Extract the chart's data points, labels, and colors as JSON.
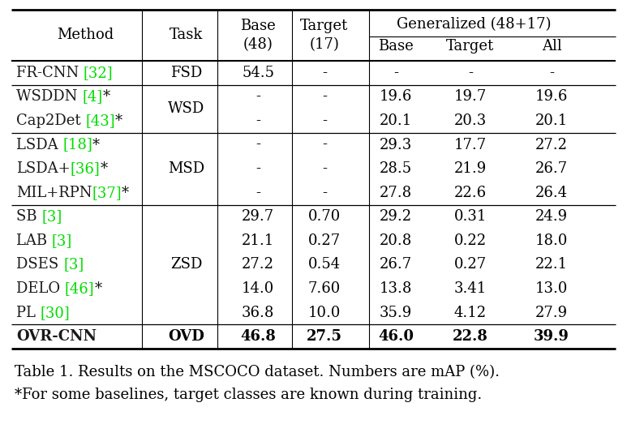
{
  "title_caption": "Table 1. Results on the MSCOCO dataset. Numbers are mAP (%).",
  "subtitle_caption": "*For some baselines, target classes are known during training.",
  "bg_color": "#ffffff",
  "rows": [
    {
      "method_parts": [
        [
          "FR-CNN ",
          "#1a1a1a"
        ],
        [
          "[32]",
          "#00dd00"
        ]
      ],
      "task": "FSD",
      "task_rows": 1,
      "base48": "54.5",
      "target17": "-",
      "gen_base": "-",
      "gen_target": "-",
      "gen_all": "-",
      "bold": false,
      "group_sep_before": true
    },
    {
      "method_parts": [
        [
          "WSDDN ",
          "#1a1a1a"
        ],
        [
          "[4]",
          "#00dd00"
        ],
        [
          "*",
          "#1a1a1a"
        ]
      ],
      "task": "WSD",
      "task_rows": 2,
      "base48": "-",
      "target17": "-",
      "gen_base": "19.6",
      "gen_target": "19.7",
      "gen_all": "19.6",
      "bold": false,
      "group_sep_before": true
    },
    {
      "method_parts": [
        [
          "Cap2Det ",
          "#1a1a1a"
        ],
        [
          "[43]",
          "#00dd00"
        ],
        [
          "*",
          "#1a1a1a"
        ]
      ],
      "task": "",
      "task_rows": 0,
      "base48": "-",
      "target17": "-",
      "gen_base": "20.1",
      "gen_target": "20.3",
      "gen_all": "20.1",
      "bold": false,
      "group_sep_before": false
    },
    {
      "method_parts": [
        [
          "LSDA ",
          "#1a1a1a"
        ],
        [
          "[18]",
          "#00dd00"
        ],
        [
          "*",
          "#1a1a1a"
        ]
      ],
      "task": "MSD",
      "task_rows": 3,
      "base48": "-",
      "target17": "-",
      "gen_base": "29.3",
      "gen_target": "17.7",
      "gen_all": "27.2",
      "bold": false,
      "group_sep_before": true
    },
    {
      "method_parts": [
        [
          "LSDA+",
          "#1a1a1a"
        ],
        [
          "[36]",
          "#00dd00"
        ],
        [
          "*",
          "#1a1a1a"
        ]
      ],
      "task": "",
      "task_rows": 0,
      "base48": "-",
      "target17": "-",
      "gen_base": "28.5",
      "gen_target": "21.9",
      "gen_all": "26.7",
      "bold": false,
      "group_sep_before": false
    },
    {
      "method_parts": [
        [
          "MIL+RPN",
          "#1a1a1a"
        ],
        [
          "[37]",
          "#00dd00"
        ],
        [
          "*",
          "#1a1a1a"
        ]
      ],
      "task": "",
      "task_rows": 0,
      "base48": "-",
      "target17": "-",
      "gen_base": "27.8",
      "gen_target": "22.6",
      "gen_all": "26.4",
      "bold": false,
      "group_sep_before": false
    },
    {
      "method_parts": [
        [
          "SB ",
          "#1a1a1a"
        ],
        [
          "[3]",
          "#00dd00"
        ]
      ],
      "task": "ZSD",
      "task_rows": 5,
      "base48": "29.7",
      "target17": "0.70",
      "gen_base": "29.2",
      "gen_target": "0.31",
      "gen_all": "24.9",
      "bold": false,
      "group_sep_before": true
    },
    {
      "method_parts": [
        [
          "LAB ",
          "#1a1a1a"
        ],
        [
          "[3]",
          "#00dd00"
        ]
      ],
      "task": "",
      "task_rows": 0,
      "base48": "21.1",
      "target17": "0.27",
      "gen_base": "20.8",
      "gen_target": "0.22",
      "gen_all": "18.0",
      "bold": false,
      "group_sep_before": false
    },
    {
      "method_parts": [
        [
          "DSES ",
          "#1a1a1a"
        ],
        [
          "[3]",
          "#00dd00"
        ]
      ],
      "task": "",
      "task_rows": 0,
      "base48": "27.2",
      "target17": "0.54",
      "gen_base": "26.7",
      "gen_target": "0.27",
      "gen_all": "22.1",
      "bold": false,
      "group_sep_before": false
    },
    {
      "method_parts": [
        [
          "DELO ",
          "#1a1a1a"
        ],
        [
          "[46]",
          "#00dd00"
        ],
        [
          "*",
          "#1a1a1a"
        ]
      ],
      "task": "",
      "task_rows": 0,
      "base48": "14.0",
      "target17": "7.60",
      "gen_base": "13.8",
      "gen_target": "3.41",
      "gen_all": "13.0",
      "bold": false,
      "group_sep_before": false
    },
    {
      "method_parts": [
        [
          "PL ",
          "#1a1a1a"
        ],
        [
          "[30]",
          "#00dd00"
        ]
      ],
      "task": "",
      "task_rows": 0,
      "base48": "36.8",
      "target17": "10.0",
      "gen_base": "35.9",
      "gen_target": "4.12",
      "gen_all": "27.9",
      "bold": false,
      "group_sep_before": false
    },
    {
      "method_parts": [
        [
          "OVR-CNN",
          "#1a1a1a"
        ]
      ],
      "task": "OVD",
      "task_rows": 1,
      "base48": "46.8",
      "target17": "27.5",
      "gen_base": "46.0",
      "gen_target": "22.8",
      "gen_all": "39.9",
      "bold": true,
      "group_sep_before": true
    }
  ],
  "font_size": 13,
  "header_font_size": 13
}
